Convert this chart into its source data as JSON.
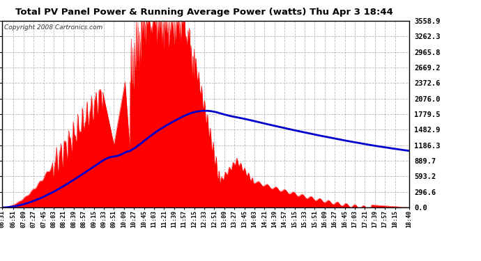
{
  "title": "Total PV Panel Power & Running Average Power (watts) Thu Apr 3 18:44",
  "copyright": "Copyright 2008 Cartronics.com",
  "background_color": "#ffffff",
  "plot_bg_color": "#ffffff",
  "grid_color": "#aaaaaa",
  "bar_color": "#ff0000",
  "avg_line_color": "#0000cc",
  "yticks": [
    0.0,
    296.6,
    593.2,
    889.7,
    1186.3,
    1482.9,
    1779.5,
    2076.0,
    2372.6,
    2669.2,
    2965.8,
    3262.3,
    3558.9
  ],
  "ymax": 3558.9,
  "ymin": 0.0,
  "xtick_labels": [
    "06:31",
    "06:51",
    "07:09",
    "07:27",
    "07:45",
    "08:03",
    "08:21",
    "08:39",
    "08:57",
    "09:15",
    "09:33",
    "09:51",
    "10:09",
    "10:27",
    "10:45",
    "11:03",
    "11:21",
    "11:39",
    "11:57",
    "12:15",
    "12:33",
    "12:51",
    "13:09",
    "13:27",
    "13:45",
    "14:03",
    "14:21",
    "14:39",
    "14:57",
    "15:15",
    "15:33",
    "15:51",
    "16:09",
    "16:27",
    "16:45",
    "17:03",
    "17:21",
    "17:39",
    "17:57",
    "18:15",
    "18:40"
  ],
  "xtick_positions": [
    0,
    20,
    38,
    56,
    74,
    92,
    110,
    128,
    146,
    164,
    182,
    200,
    218,
    236,
    254,
    272,
    290,
    308,
    326,
    344,
    362,
    380,
    398,
    416,
    434,
    452,
    470,
    488,
    506,
    524,
    542,
    560,
    578,
    596,
    614,
    632,
    650,
    668,
    686,
    704,
    729
  ]
}
